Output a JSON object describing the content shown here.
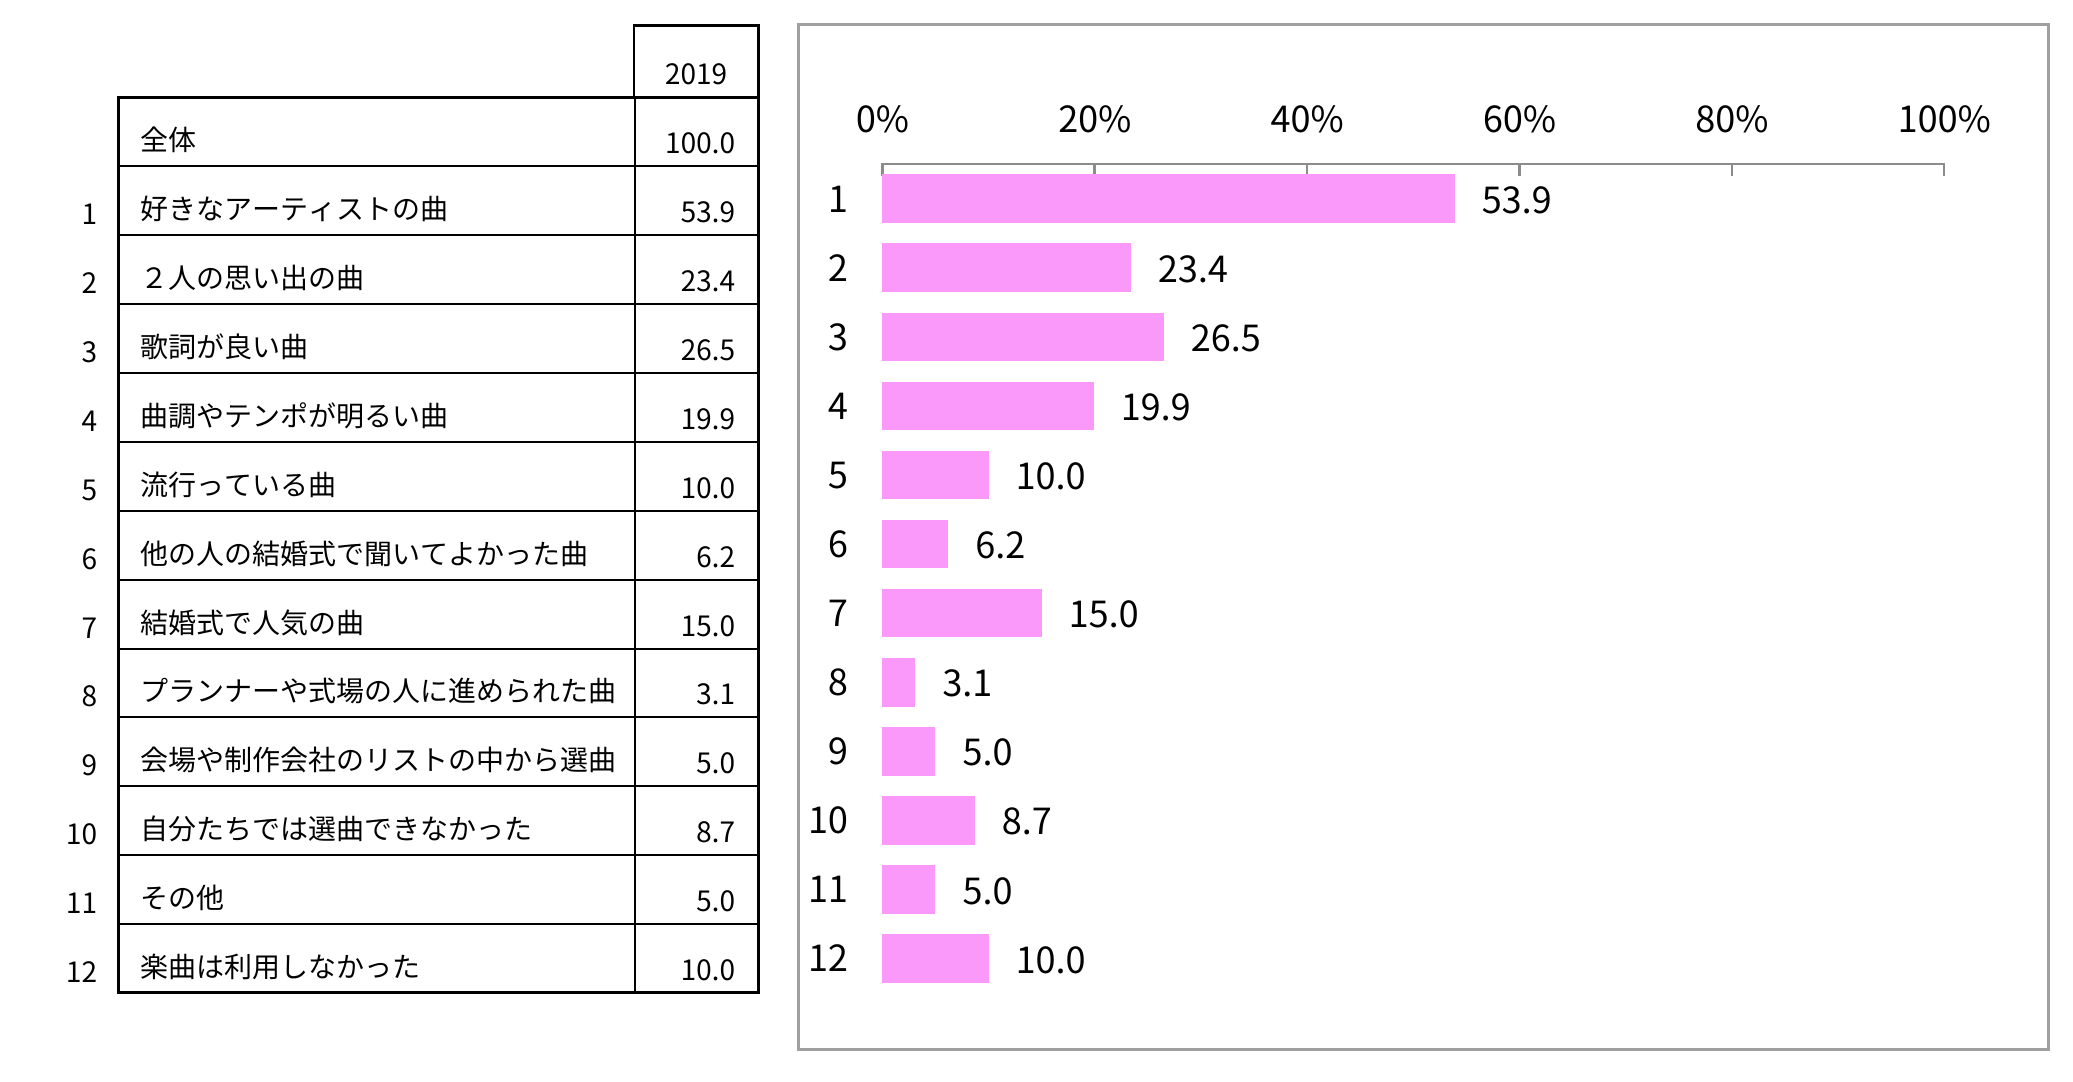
{
  "table": {
    "header_year": "2019",
    "rows": [
      {
        "rank": "",
        "label": "全体",
        "value": "100.0"
      },
      {
        "rank": "1",
        "label": "好きなアーティストの曲",
        "value": "53.9"
      },
      {
        "rank": "2",
        "label": "２人の思い出の曲",
        "value": "23.4"
      },
      {
        "rank": "3",
        "label": "歌詞が良い曲",
        "value": "26.5"
      },
      {
        "rank": "4",
        "label": "曲調やテンポが明るい曲",
        "value": "19.9"
      },
      {
        "rank": "5",
        "label": "流行っている曲",
        "value": "10.0"
      },
      {
        "rank": "6",
        "label": "他の人の結婚式で聞いてよかった曲",
        "value": "6.2"
      },
      {
        "rank": "7",
        "label": "結婚式で人気の曲",
        "value": "15.0"
      },
      {
        "rank": "8",
        "label": "プランナーや式場の人に進められた曲",
        "value": "3.1"
      },
      {
        "rank": "9",
        "label": "会場や制作会社のリストの中から選曲",
        "value": "5.0"
      },
      {
        "rank": "10",
        "label": "自分たちでは選曲できなかった",
        "value": "8.7"
      },
      {
        "rank": "11",
        "label": "その他",
        "value": "5.0"
      },
      {
        "rank": "12",
        "label": "楽曲は利用しなかった",
        "value": "10.0"
      }
    ]
  },
  "chart_data": {
    "type": "bar",
    "orientation": "horizontal",
    "title": "",
    "xlabel": "",
    "ylabel": "",
    "series_name": "2019",
    "categories": [
      "1",
      "2",
      "3",
      "4",
      "5",
      "6",
      "7",
      "8",
      "9",
      "10",
      "11",
      "12"
    ],
    "values": [
      53.9,
      23.4,
      26.5,
      19.9,
      10.0,
      6.2,
      15.0,
      3.1,
      5.0,
      8.7,
      5.0,
      10.0
    ],
    "data_labels": [
      "53.9",
      "23.4",
      "26.5",
      "19.9",
      "10.0",
      "6.2",
      "15.0",
      "3.1",
      "5.0",
      "8.7",
      "5.0",
      "10.0"
    ],
    "x_ticks": [
      "0%",
      "20%",
      "40%",
      "60%",
      "80%",
      "100%"
    ],
    "x_tick_values": [
      0,
      20,
      40,
      60,
      80,
      100
    ],
    "xlim": [
      0,
      100
    ],
    "grid": "off",
    "legend": "none",
    "bar_color": "#FA99FA",
    "axis_color": "#8C8C8C",
    "frame_color": "#A0A0A0",
    "text_color": "#000000"
  }
}
